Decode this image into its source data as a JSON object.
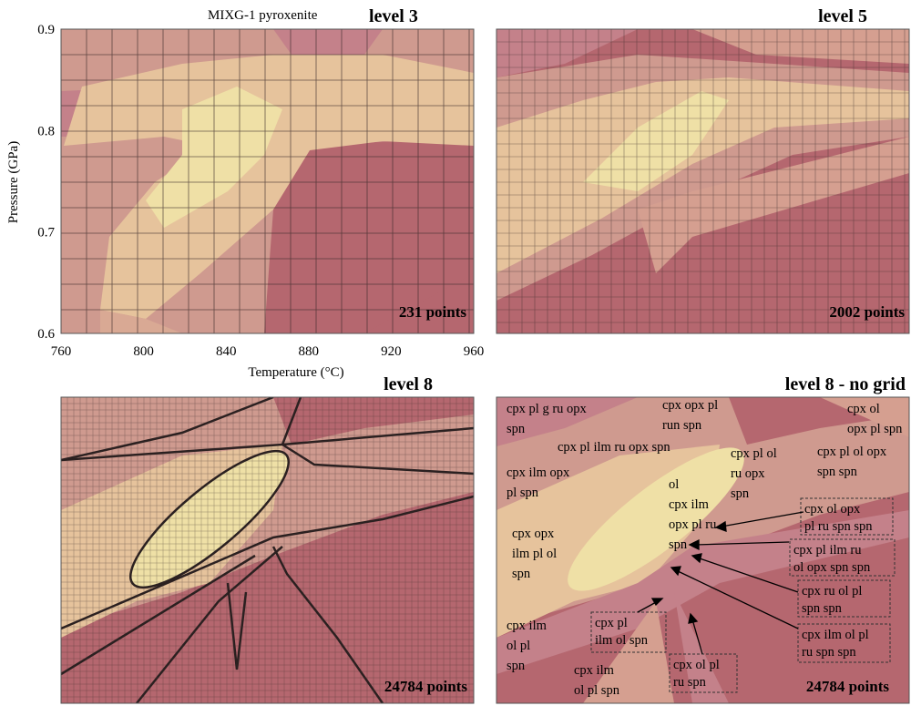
{
  "figure": {
    "sample_name": "MIXG-1 pyroxenite",
    "colors": {
      "dark": "#b5676f",
      "mid": "#cf9a8f",
      "light": "#e6c39c",
      "pale": "#efe0a6",
      "grid": "#3a2a2a"
    }
  },
  "chart_data": [
    {
      "type": "heatmap",
      "title": "level 3",
      "xlabel": "Temperature (°C)",
      "ylabel": "Pressure (GPa)",
      "xlim": [
        760,
        960
      ],
      "ylim": [
        0.6,
        0.9
      ],
      "xticks": [
        760,
        800,
        840,
        880,
        920,
        960
      ],
      "yticks": [
        0.6,
        0.7,
        0.8,
        0.9
      ],
      "points_label": "231 points",
      "points": 231,
      "grid": true
    },
    {
      "type": "heatmap",
      "title": "level 5",
      "xlim": [
        760,
        960
      ],
      "ylim": [
        0.6,
        0.9
      ],
      "points_label": "2002 points",
      "points": 2002,
      "grid": true
    },
    {
      "type": "heatmap",
      "title": "level 8",
      "xlim": [
        760,
        960
      ],
      "ylim": [
        0.6,
        0.9
      ],
      "points_label": "24784 points",
      "points": 24784,
      "grid": true
    },
    {
      "type": "heatmap",
      "title": "level 8 - no grid",
      "xlim": [
        760,
        960
      ],
      "ylim": [
        0.6,
        0.9
      ],
      "points_label": "24784 points",
      "points": 24784,
      "grid": false,
      "field_labels": [
        {
          "lines": [
            "cpx pl g ru opx",
            "spn"
          ]
        },
        {
          "lines": [
            "cpx opx pl",
            "run spn"
          ]
        },
        {
          "lines": [
            "cpx ol",
            "opx pl spn"
          ]
        },
        {
          "lines": [
            "cpx pl ilm ru opx spn"
          ]
        },
        {
          "lines": [
            "cpx pl ol",
            "ru opx",
            "spn"
          ]
        },
        {
          "lines": [
            "cpx pl ol opx",
            "spn spn"
          ]
        },
        {
          "lines": [
            "cpx ilm opx",
            "pl spn"
          ]
        },
        {
          "lines": [
            "ol",
            "cpx ilm",
            "opx pl ru",
            "spn"
          ]
        },
        {
          "lines": [
            "cpx opx",
            "ilm pl ol",
            "spn"
          ]
        },
        {
          "lines": [
            "cpx ilm",
            "ol pl",
            "spn"
          ]
        },
        {
          "lines": [
            "cpx ilm",
            "ol pl spn"
          ]
        }
      ],
      "boxed_labels": [
        {
          "lines": [
            "cpx ol opx",
            "pl ru spn spn"
          ]
        },
        {
          "lines": [
            "cpx pl ilm ru",
            "ol opx spn spn"
          ]
        },
        {
          "lines": [
            "cpx ru ol pl",
            "spn spn"
          ]
        },
        {
          "lines": [
            "cpx ilm ol pl",
            "ru spn spn"
          ]
        },
        {
          "lines": [
            "cpx pl",
            "ilm ol spn"
          ]
        },
        {
          "lines": [
            "cpx ol pl",
            "ru spn"
          ]
        }
      ]
    }
  ]
}
